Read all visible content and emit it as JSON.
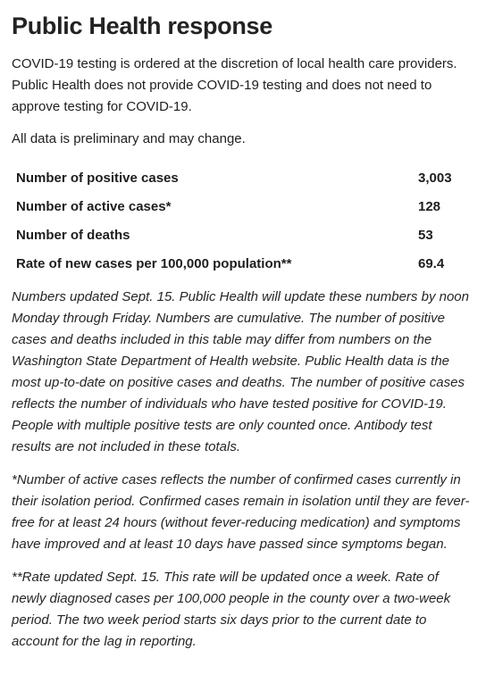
{
  "title": "Public Health response",
  "intro": "COVID-19 testing is ordered at the discretion of local health care providers. Public Health does not provide COVID-19 testing and does not need to approve testing for COVID-19.",
  "preliminary": "All data is preliminary and may change.",
  "stats": [
    {
      "label": "Number of positive cases",
      "value": "3,003"
    },
    {
      "label": "Number of active cases*",
      "value": "128"
    },
    {
      "label": "Number of deaths",
      "value": "53"
    },
    {
      "label": "Rate of new cases per 100,000 population**",
      "value": "69.4"
    }
  ],
  "notes": [
    "Numbers updated Sept. 15. Public Health will update these numbers by noon Monday through Friday. Numbers are cumulative. The number of positive cases and deaths included in this table may differ from numbers on the Washington State Department of Health website. Public Health data is the most up-to-date on positive cases and deaths. The number of positive cases reflects the number of individuals who have tested positive for COVID-19. People with multiple positive tests are only counted once. Antibody test results are not included in these totals.",
    "*Number of active cases reflects the number of confirmed cases currently in their isolation period. Confirmed cases remain in isolation until they are fever-free for at least 24 hours (without fever-reducing medication) and symptoms have improved and at least 10 days have passed since symptoms began.",
    "**Rate updated Sept. 15. This rate will be updated once a week. Rate of newly diagnosed cases per 100,000 people in the county over a two-week period. The two week period starts six days prior to the current date to account for the lag in reporting."
  ]
}
